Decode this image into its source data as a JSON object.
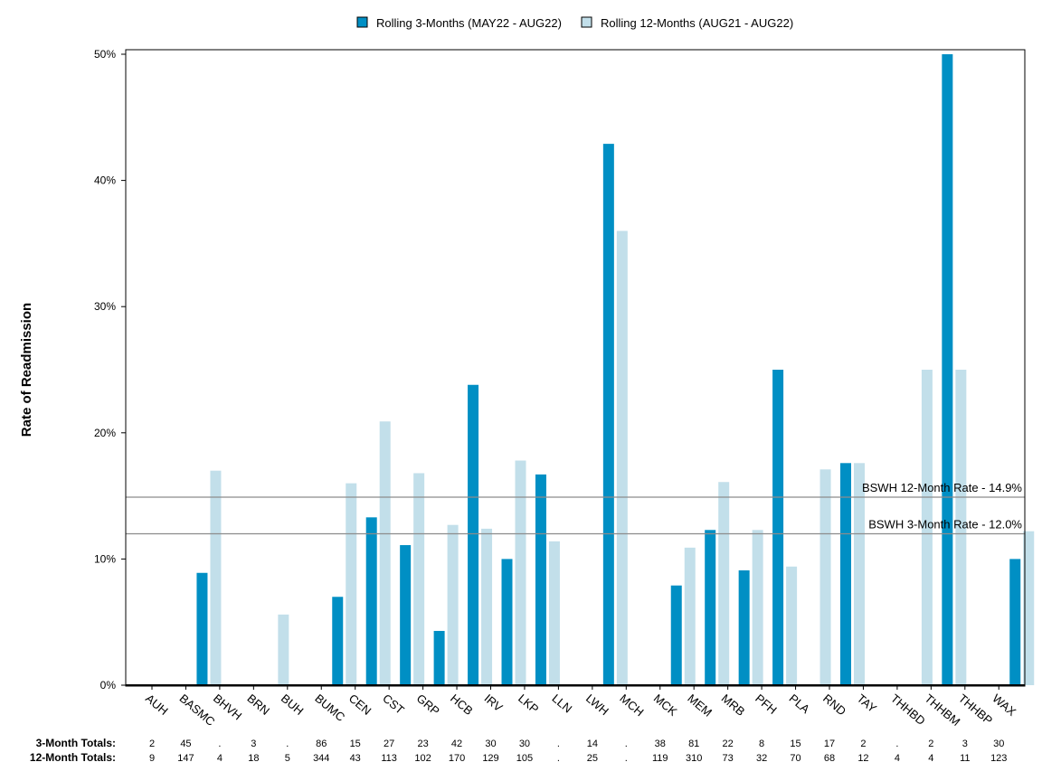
{
  "chart_data": {
    "type": "bar",
    "ylabel": "Rate of Readmission",
    "xlabel": "",
    "ylim": [
      0,
      50
    ],
    "yticks": [
      0,
      10,
      20,
      30,
      40,
      50
    ],
    "ytick_suffix": "%",
    "legend_position": "top-center",
    "grid": false,
    "categories": [
      "AUH",
      "BASMC",
      "BHVH",
      "BRN",
      "BUH",
      "BUMC",
      "CEN",
      "CST",
      "GRP",
      "HCB",
      "IRV",
      "LKP",
      "LLN",
      "LWH",
      "MCH",
      "MCK",
      "MEM",
      "MRB",
      "PFH",
      "PLA",
      "RND",
      "TAY",
      "THHBD",
      "THHBM",
      "THHBP",
      "WAX"
    ],
    "series": [
      {
        "name": "Rolling 3-Months (MAY22 - AUG22)",
        "color": "#008fc4",
        "values": [
          0,
          8.9,
          0,
          0,
          0,
          7.0,
          13.3,
          11.1,
          4.3,
          23.8,
          10.0,
          16.7,
          0,
          42.9,
          0,
          7.9,
          12.3,
          9.1,
          25.0,
          0,
          17.6,
          0,
          0,
          50.0,
          0,
          10.0
        ]
      },
      {
        "name": "Rolling 12-Months (AUG21 - AUG22)",
        "color": "#c2dfea",
        "values": [
          0,
          17.0,
          0,
          5.6,
          0,
          16.0,
          20.9,
          16.8,
          12.7,
          12.4,
          17.8,
          11.4,
          0,
          36.0,
          0,
          10.9,
          16.1,
          12.3,
          9.4,
          17.1,
          17.6,
          0,
          25.0,
          25.0,
          0,
          12.2
        ]
      }
    ],
    "reference_lines": [
      {
        "label": "BSWH 12-Month Rate - 14.9%",
        "value": 14.9
      },
      {
        "label": "BSWH  3-Month Rate - 12.0%",
        "value": 12.0
      }
    ],
    "totals": [
      {
        "label": "3-Month Totals:",
        "values": [
          "2",
          "45",
          ".",
          "3",
          ".",
          "86",
          "15",
          "27",
          "23",
          "42",
          "30",
          "30",
          ".",
          "14",
          ".",
          "38",
          "81",
          "22",
          "8",
          "15",
          "17",
          "2",
          ".",
          "2",
          "3",
          "30"
        ]
      },
      {
        "label": "12-Month Totals:",
        "values": [
          "9",
          "147",
          "4",
          "18",
          "5",
          "344",
          "43",
          "113",
          "102",
          "170",
          "129",
          "105",
          ".",
          "25",
          ".",
          "119",
          "310",
          "73",
          "32",
          "70",
          "68",
          "12",
          "4",
          "4",
          "11",
          "123"
        ]
      }
    ]
  }
}
